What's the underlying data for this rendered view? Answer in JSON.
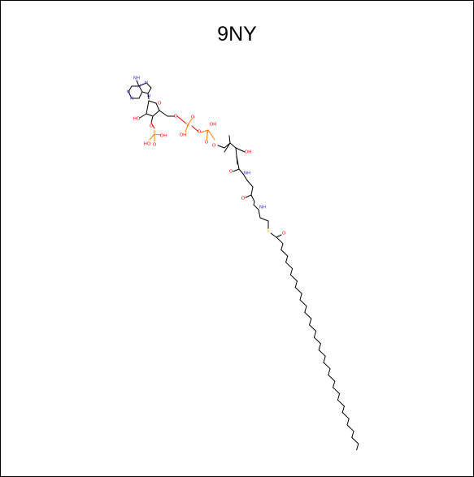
{
  "title": "9NY",
  "molecule": {
    "atom_labels": {
      "nh2": "NH",
      "n_pur1": "N",
      "n_pur2": "N",
      "n_pur3": "N",
      "n_pur4": "N",
      "n_pur9": "N",
      "o_ring": "O",
      "ho_2": "HO",
      "o_3": "O",
      "p_3": "P",
      "ho_p3a": "HO",
      "oh_p3b": "OH",
      "o_p3c": "O",
      "o_5": "O",
      "p_a": "P",
      "o_pa_top": "O",
      "oh_pa": "OH",
      "o_bridge": "O",
      "p_b": "P",
      "oh_pb": "OH",
      "o_pb_bot": "O",
      "o_pant": "O",
      "oh_pant": "OH",
      "o_amide1": "O",
      "nh_1": "NH",
      "o_amide2": "O",
      "nh_2": "NH",
      "s": "S",
      "o_thioester": "O"
    },
    "colors": {
      "bond": "#000000",
      "nitrogen": "#3333cc",
      "oxygen": "#ff0000",
      "phosphorus": "#ff8000",
      "sulfur": "#cccc00"
    }
  }
}
